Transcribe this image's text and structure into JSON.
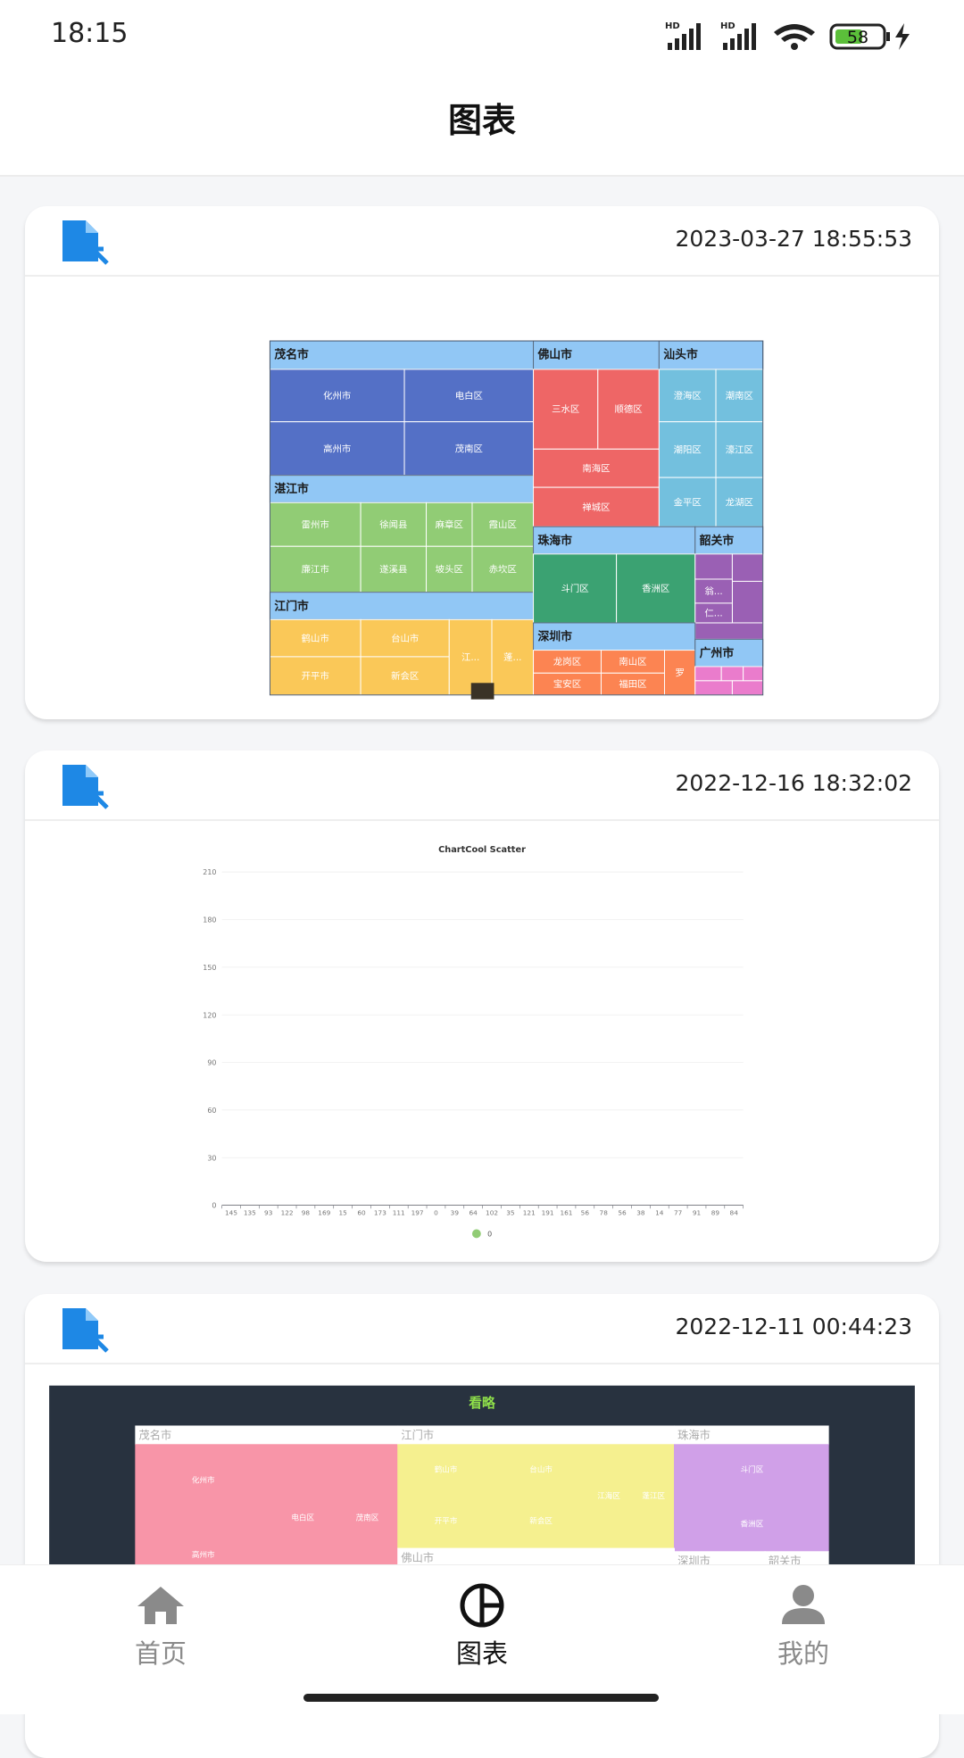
{
  "status_bar": {
    "time": "18:15",
    "battery": "58"
  },
  "header": {
    "title": "图表"
  },
  "cards": [
    {
      "date": "2023-03-27 18:55:53",
      "treemap": {
        "groups": [
          {
            "name": "茂名市",
            "children": [
              "化州市",
              "电白区",
              "高州市",
              "茂南区"
            ]
          },
          {
            "name": "湛江市",
            "children": [
              "雷州市",
              "徐闻县",
              "麻章区",
              "霞山区",
              "廉江市",
              "遂溪县",
              "坡头区",
              "赤坎区"
            ]
          },
          {
            "name": "江门市",
            "children": [
              "鹤山市",
              "台山市",
              "开平市",
              "新会区",
              "江...",
              "蓬..."
            ]
          },
          {
            "name": "佛山市",
            "children": [
              "三水区",
              "顺德区",
              "南海区",
              "禅城区"
            ]
          },
          {
            "name": "汕头市",
            "children": [
              "澄海区",
              "潮南区",
              "潮阳区",
              "濠江区",
              "金平区",
              "龙湖区"
            ]
          },
          {
            "name": "珠海市",
            "children": [
              "斗门区",
              "香洲区"
            ]
          },
          {
            "name": "韶关市",
            "children": [
              "翁...",
              "仁..."
            ]
          },
          {
            "name": "深圳市",
            "children": [
              "龙岗区",
              "南山区",
              "宝安区",
              "福田区",
              "罗"
            ]
          },
          {
            "name": "广州市",
            "children": []
          }
        ]
      }
    },
    {
      "date": "2022-12-16 18:32:02",
      "chart_data": {
        "type": "scatter",
        "title": "ChartCool Scatter",
        "categories": [
          "145",
          "135",
          "93",
          "122",
          "98",
          "169",
          "15",
          "60",
          "173",
          "111",
          "197",
          "0",
          "39",
          "64",
          "102",
          "35",
          "121",
          "191",
          "161",
          "56",
          "78",
          "56",
          "38",
          "14",
          "77",
          "91",
          "89",
          "84"
        ],
        "ylim": [
          0,
          210
        ],
        "yticks": [
          0,
          30,
          60,
          90,
          120,
          150,
          180,
          210
        ],
        "grid": true,
        "legend": [
          {
            "name": "0",
            "color": "#91cc75"
          }
        ]
      }
    },
    {
      "date": "2022-12-11 00:44:23",
      "treemap": {
        "title": "看略",
        "groups": [
          {
            "name": "茂名市",
            "children": [
              "化州市",
              "电白区",
              "茂南区",
              "高州市"
            ]
          },
          {
            "name": "江门市",
            "children": [
              "鹤山市",
              "台山市",
              "开平市",
              "新会区",
              "江海区",
              "蓬江区"
            ]
          },
          {
            "name": "珠海市",
            "children": [
              "斗门区",
              "香洲区"
            ]
          },
          {
            "name": "佛山市",
            "children": []
          },
          {
            "name": "深圳市",
            "children": []
          },
          {
            "name": "韶关市",
            "children": []
          }
        ]
      }
    }
  ],
  "nav": [
    {
      "label": "首页"
    },
    {
      "label": "图表"
    },
    {
      "label": "我的"
    }
  ]
}
